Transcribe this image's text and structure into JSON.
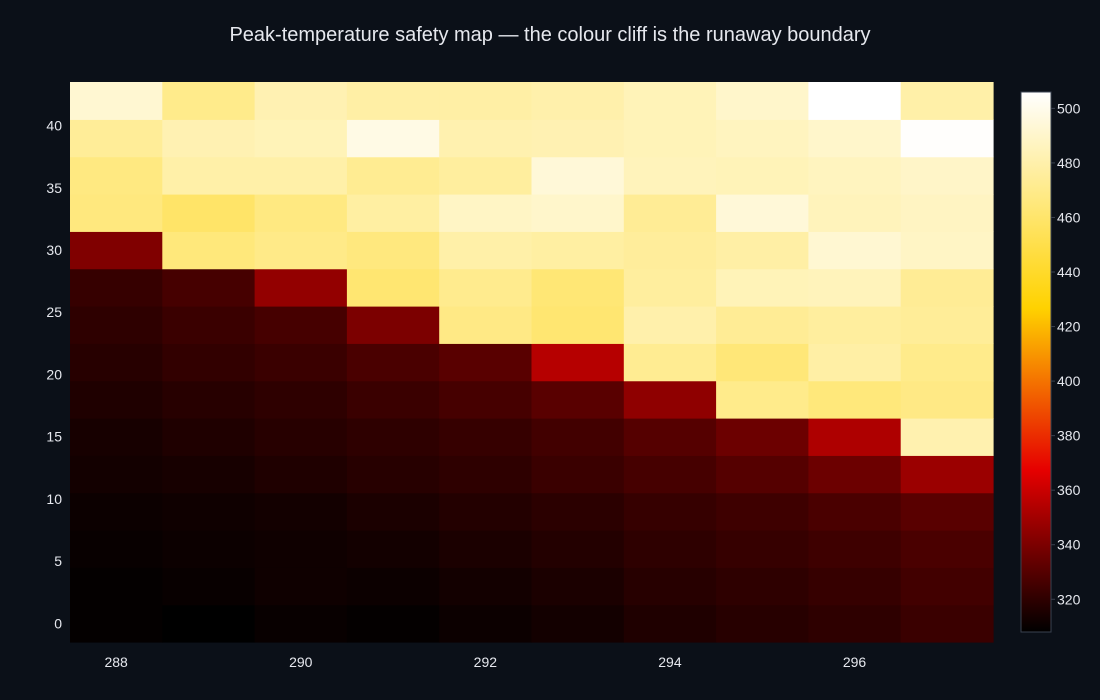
{
  "chart_data": {
    "type": "heatmap",
    "title": "Peak-temperature safety map — the colour cliff is the runaway boundary",
    "xlabel": "",
    "ylabel": "",
    "x": [
      288,
      289,
      290,
      291,
      292,
      293,
      294,
      295,
      296,
      297
    ],
    "y": [
      0,
      3,
      6,
      9,
      12,
      15,
      18,
      21,
      24,
      27,
      30,
      33,
      36,
      39,
      42
    ],
    "x_ticks": [
      288,
      290,
      292,
      294,
      296
    ],
    "y_ticks": [
      0,
      5,
      10,
      15,
      20,
      25,
      30,
      35,
      40
    ],
    "z": [
      [
        309,
        308,
        310,
        309,
        311,
        313,
        316,
        318,
        320,
        323
      ],
      [
        309,
        310,
        312,
        311,
        313,
        315,
        318,
        320,
        322,
        325
      ],
      [
        310,
        311,
        312,
        313,
        315,
        317,
        320,
        322,
        324,
        327
      ],
      [
        311,
        312,
        313,
        315,
        317,
        319,
        322,
        324,
        327,
        331
      ],
      [
        313,
        314,
        316,
        318,
        320,
        323,
        326,
        330,
        336,
        348
      ],
      [
        314,
        316,
        318,
        320,
        322,
        325,
        330,
        336,
        353,
        481
      ],
      [
        316,
        318,
        320,
        323,
        326,
        331,
        345,
        470,
        465,
        468
      ],
      [
        318,
        321,
        323,
        327,
        331,
        355,
        472,
        464,
        478,
        470
      ],
      [
        320,
        323,
        326,
        340,
        468,
        462,
        480,
        473,
        476,
        474
      ],
      [
        322,
        326,
        346,
        462,
        471,
        463,
        476,
        484,
        485,
        473
      ],
      [
        341,
        465,
        469,
        466,
        479,
        477,
        475,
        478,
        492,
        488
      ],
      [
        466,
        459,
        467,
        477,
        488,
        490,
        473,
        494,
        485,
        487
      ],
      [
        467,
        479,
        479,
        472,
        476,
        494,
        485,
        484,
        486,
        489
      ],
      [
        474,
        482,
        484,
        498,
        481,
        482,
        484,
        486,
        490,
        505
      ],
      [
        492,
        470,
        482,
        478,
        478,
        480,
        484,
        490,
        506,
        479
      ]
    ],
    "colorscale": "hot",
    "zlim": [
      308,
      506
    ],
    "colorbar_ticks": [
      320,
      340,
      360,
      380,
      400,
      420,
      440,
      460,
      480,
      500
    ],
    "grid": false,
    "colorbar_position": "right"
  },
  "theme": {
    "background": "#0b1018",
    "text_color": "#e6e8ee",
    "colorbar_border": "#3a4250"
  }
}
